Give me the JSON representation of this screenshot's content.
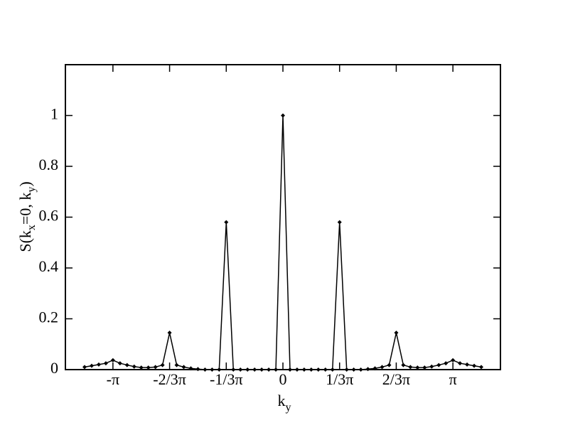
{
  "chart_data": {
    "type": "line",
    "xlabel": [
      "k",
      "y"
    ],
    "ylabel": [
      "S(k",
      "x",
      "=0, k",
      "y",
      ")"
    ],
    "x": [
      -3.6652,
      -3.5343,
      -3.4034,
      -3.2725,
      -3.1416,
      -3.0107,
      -2.8798,
      -2.7489,
      -2.618,
      -2.4871,
      -2.3562,
      -2.2253,
      -2.0944,
      -1.9635,
      -1.8326,
      -1.7017,
      -1.5708,
      -1.4399,
      -1.309,
      -1.1781,
      -1.0472,
      -0.9163,
      -0.7854,
      -0.6545,
      -0.5236,
      -0.3927,
      -0.2618,
      -0.1309,
      0,
      0.1309,
      0.2618,
      0.3927,
      0.5236,
      0.6545,
      0.7854,
      0.9163,
      1.0472,
      1.1781,
      1.309,
      1.4399,
      1.5708,
      1.7017,
      1.8326,
      1.9635,
      2.0944,
      2.2253,
      2.3562,
      2.4871,
      2.618,
      2.7489,
      2.8798,
      3.0107,
      3.1416,
      3.2725,
      3.4034,
      3.5343,
      3.6652
    ],
    "series": [
      {
        "color": "#000000",
        "values": [
          0.01,
          0.015,
          0.02,
          0.025,
          0.037,
          0.025,
          0.018,
          0.012,
          0.008,
          0.008,
          0.01,
          0.018,
          0.145,
          0.018,
          0.01,
          0.005,
          0.002,
          0,
          0,
          0,
          0.58,
          0,
          0,
          0,
          0,
          0,
          0,
          0,
          1.0,
          0,
          0,
          0,
          0,
          0,
          0,
          0,
          0.58,
          0,
          0,
          0,
          0.002,
          0.005,
          0.01,
          0.018,
          0.145,
          0.018,
          0.01,
          0.008,
          0.008,
          0.012,
          0.018,
          0.025,
          0.037,
          0.025,
          0.02,
          0.015,
          0.01
        ]
      }
    ],
    "xlim": [
      -4.02,
      4.02
    ],
    "ylim": [
      0,
      1.2
    ],
    "xticks": [
      {
        "value": -3.1416,
        "label": "-π"
      },
      {
        "value": -2.0944,
        "label": "-2/3π"
      },
      {
        "value": -1.0472,
        "label": "-1/3π"
      },
      0,
      {
        "value": 1.0472,
        "label": "1/3π"
      },
      {
        "value": 2.0944,
        "label": "2/3π"
      },
      {
        "value": 3.1416,
        "label": "π"
      }
    ],
    "yticks": [
      0,
      0.2,
      0.4,
      0.6,
      0.8,
      1
    ]
  }
}
